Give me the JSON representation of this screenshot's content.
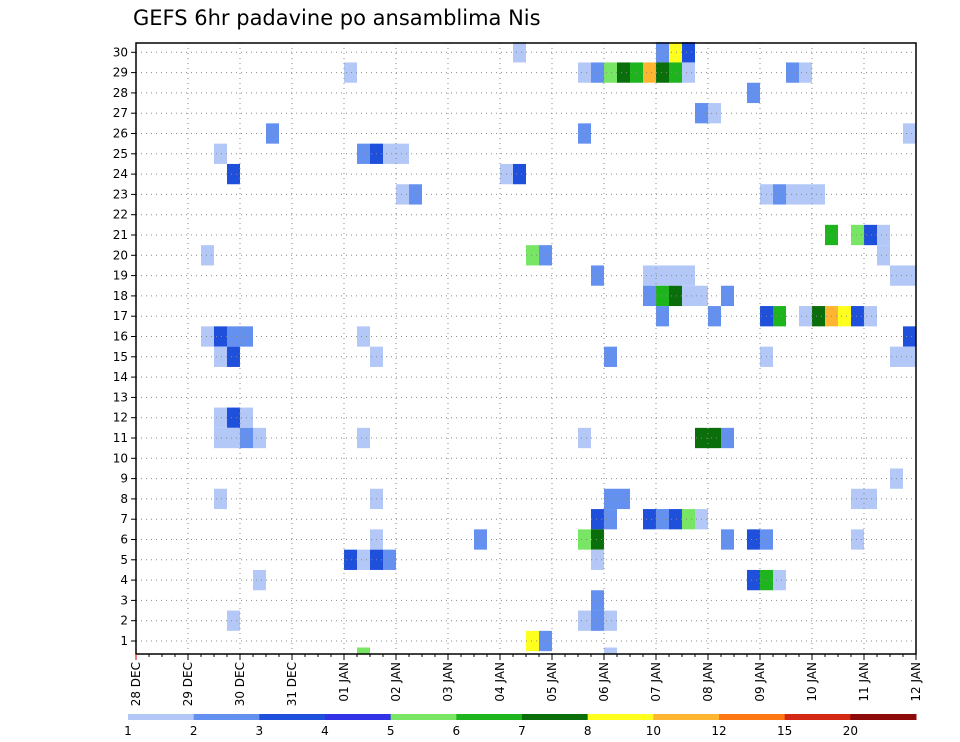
{
  "chart_data": {
    "type": "heatmap",
    "title": "GEFS 6hr padavine po ansamblima Nis",
    "xlabel": "",
    "ylabel": "",
    "x_tick_labels": [
      "28 DEC",
      "29 DEC",
      "30 DEC",
      "31 DEC",
      "01 JAN",
      "02 JAN",
      "03 JAN",
      "04 JAN",
      "05 JAN",
      "06 JAN",
      "07 JAN",
      "08 JAN",
      "09 JAN",
      "10 JAN",
      "11 JAN",
      "12 JAN"
    ],
    "x_range_6hr_steps": [
      0,
      60
    ],
    "y_members": [
      1,
      30
    ],
    "y_tick_labels": [
      1,
      2,
      3,
      4,
      5,
      6,
      7,
      8,
      9,
      10,
      11,
      12,
      13,
      14,
      15,
      16,
      17,
      18,
      19,
      20,
      21,
      22,
      23,
      24,
      25,
      26,
      27,
      28,
      29,
      30
    ],
    "grid": true,
    "colorbar": {
      "position": "bottom",
      "levels": [
        1,
        2,
        3,
        4,
        5,
        6,
        7,
        8,
        10,
        12,
        15,
        20
      ],
      "labels": [
        "1",
        "2",
        "3",
        "4",
        "5",
        "6",
        "7",
        "8",
        "10",
        "12",
        "15",
        "20"
      ],
      "colors": [
        "#b4c8f8",
        "#6490f0",
        "#1e50dc",
        "#3232e6",
        "#78e664",
        "#1eb41e",
        "#0a6e0a",
        "#ffff1e",
        "#ffb432",
        "#ff7814",
        "#d22814",
        "#8c0a0a"
      ]
    },
    "cells_member_step_level": [
      [
        30,
        29,
        1
      ],
      [
        30,
        40,
        2
      ],
      [
        30,
        41,
        8
      ],
      [
        30,
        42,
        3
      ],
      [
        29,
        16,
        1
      ],
      [
        29,
        34,
        1
      ],
      [
        29,
        35,
        2
      ],
      [
        29,
        36,
        5
      ],
      [
        29,
        37,
        7
      ],
      [
        29,
        38,
        6
      ],
      [
        29,
        39,
        9
      ],
      [
        29,
        40,
        7
      ],
      [
        29,
        41,
        6
      ],
      [
        29,
        42,
        1
      ],
      [
        29,
        50,
        2
      ],
      [
        29,
        51,
        1
      ],
      [
        28,
        47,
        2
      ],
      [
        27,
        43,
        2
      ],
      [
        27,
        44,
        1
      ],
      [
        26,
        10,
        2
      ],
      [
        26,
        34,
        2
      ],
      [
        26,
        59,
        1
      ],
      [
        25,
        6,
        1
      ],
      [
        25,
        17,
        2
      ],
      [
        25,
        18,
        3
      ],
      [
        25,
        19,
        1
      ],
      [
        25,
        20,
        1
      ],
      [
        24,
        7,
        3
      ],
      [
        24,
        28,
        1
      ],
      [
        24,
        29,
        3
      ],
      [
        23,
        20,
        1
      ],
      [
        23,
        21,
        2
      ],
      [
        23,
        48,
        1
      ],
      [
        23,
        49,
        2
      ],
      [
        23,
        50,
        1
      ],
      [
        23,
        51,
        1
      ],
      [
        23,
        52,
        1
      ],
      [
        21,
        53,
        6
      ],
      [
        21,
        55,
        5
      ],
      [
        21,
        56,
        3
      ],
      [
        21,
        57,
        1
      ],
      [
        20,
        5,
        1
      ],
      [
        20,
        30,
        5
      ],
      [
        20,
        31,
        2
      ],
      [
        20,
        57,
        1
      ],
      [
        19,
        35,
        2
      ],
      [
        19,
        39,
        1
      ],
      [
        19,
        40,
        1
      ],
      [
        19,
        41,
        1
      ],
      [
        19,
        42,
        1
      ],
      [
        19,
        58,
        1
      ],
      [
        19,
        59,
        1
      ],
      [
        18,
        39,
        2
      ],
      [
        18,
        40,
        6
      ],
      [
        18,
        41,
        7
      ],
      [
        18,
        42,
        1
      ],
      [
        18,
        43,
        1
      ],
      [
        18,
        45,
        2
      ],
      [
        17,
        40,
        2
      ],
      [
        17,
        44,
        2
      ],
      [
        17,
        48,
        3
      ],
      [
        17,
        49,
        6
      ],
      [
        17,
        51,
        1
      ],
      [
        17,
        52,
        7
      ],
      [
        17,
        53,
        9
      ],
      [
        17,
        54,
        8
      ],
      [
        17,
        55,
        3
      ],
      [
        17,
        56,
        1
      ],
      [
        16,
        5,
        1
      ],
      [
        16,
        6,
        3
      ],
      [
        16,
        7,
        2
      ],
      [
        16,
        8,
        2
      ],
      [
        16,
        17,
        1
      ],
      [
        16,
        59,
        3
      ],
      [
        15,
        6,
        1
      ],
      [
        15,
        7,
        3
      ],
      [
        15,
        18,
        1
      ],
      [
        15,
        36,
        2
      ],
      [
        15,
        48,
        1
      ],
      [
        15,
        58,
        1
      ],
      [
        15,
        59,
        1
      ],
      [
        12,
        6,
        1
      ],
      [
        12,
        7,
        3
      ],
      [
        12,
        8,
        1
      ],
      [
        11,
        6,
        1
      ],
      [
        11,
        7,
        1
      ],
      [
        11,
        8,
        2
      ],
      [
        11,
        9,
        1
      ],
      [
        11,
        17,
        1
      ],
      [
        11,
        34,
        1
      ],
      [
        11,
        43,
        7
      ],
      [
        11,
        44,
        7
      ],
      [
        11,
        45,
        2
      ],
      [
        9,
        58,
        1
      ],
      [
        8,
        6,
        1
      ],
      [
        8,
        18,
        1
      ],
      [
        8,
        36,
        2
      ],
      [
        8,
        37,
        2
      ],
      [
        8,
        55,
        1
      ],
      [
        8,
        56,
        1
      ],
      [
        7,
        35,
        3
      ],
      [
        7,
        36,
        2
      ],
      [
        7,
        39,
        3
      ],
      [
        7,
        40,
        2
      ],
      [
        7,
        41,
        3
      ],
      [
        7,
        42,
        5
      ],
      [
        7,
        43,
        1
      ],
      [
        6,
        18,
        1
      ],
      [
        6,
        26,
        2
      ],
      [
        6,
        34,
        5
      ],
      [
        6,
        35,
        7
      ],
      [
        6,
        45,
        2
      ],
      [
        6,
        47,
        3
      ],
      [
        6,
        48,
        2
      ],
      [
        6,
        55,
        1
      ],
      [
        5,
        16,
        3
      ],
      [
        5,
        17,
        1
      ],
      [
        5,
        18,
        3
      ],
      [
        5,
        19,
        2
      ],
      [
        5,
        35,
        1
      ],
      [
        4,
        9,
        1
      ],
      [
        4,
        47,
        3
      ],
      [
        4,
        48,
        6
      ],
      [
        4,
        49,
        1
      ],
      [
        3,
        35,
        2
      ],
      [
        2,
        7,
        1
      ],
      [
        2,
        34,
        1
      ],
      [
        2,
        35,
        2
      ],
      [
        2,
        36,
        1
      ],
      [
        1,
        30,
        8
      ],
      [
        1,
        31,
        2
      ],
      [
        0,
        17,
        5
      ],
      [
        0,
        36,
        1
      ]
    ]
  }
}
